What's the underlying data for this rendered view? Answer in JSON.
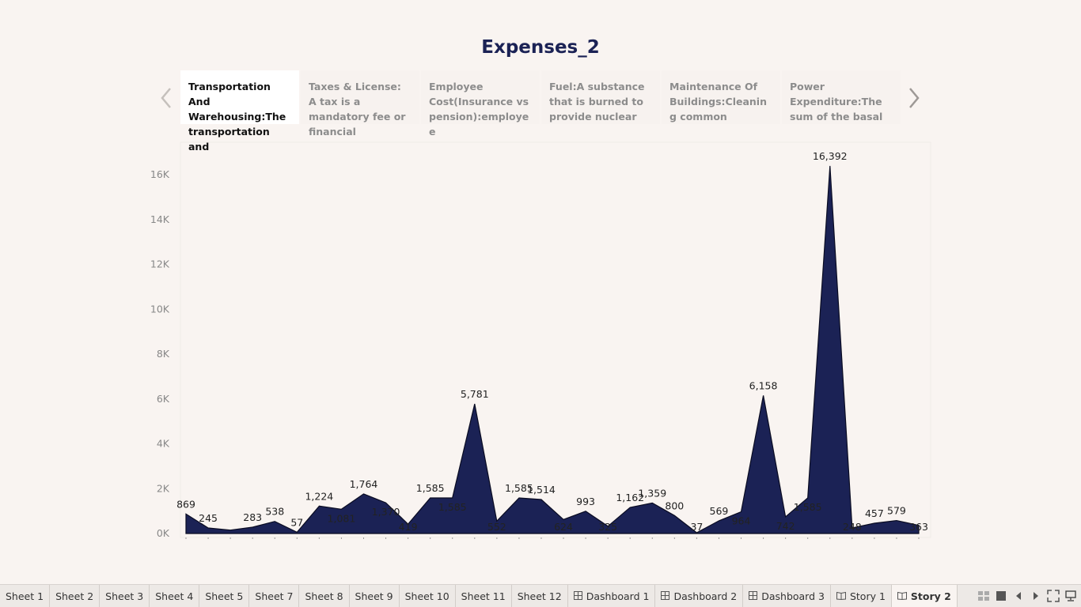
{
  "story": {
    "title": "Expenses_2",
    "captions": [
      {
        "text": "Transportation And Warehousing:The transportation and",
        "active": true
      },
      {
        "text": "Taxes & License: A tax is a mandatory fee or financial",
        "active": false
      },
      {
        "text": "Employee Cost(Insurance vs pension):employee",
        "active": false
      },
      {
        "text": "Fuel:A substance that is burned to provide nuclear",
        "active": false
      },
      {
        "text": "Maintenance Of Buildings:Cleaning common",
        "active": false
      },
      {
        "text": "Power Expenditure:The sum of the basal",
        "active": false
      }
    ]
  },
  "colors": {
    "area_fill": "#1b2255",
    "area_stroke": "#0a0c22",
    "axis_text": "#888888",
    "label_text": "#222222"
  },
  "chart_data": {
    "type": "area",
    "title": "",
    "xlabel": "",
    "ylabel": "",
    "ylim": [
      0,
      17000
    ],
    "y_ticks": [
      0,
      2000,
      4000,
      6000,
      8000,
      10000,
      12000,
      14000,
      16000
    ],
    "y_tick_labels": [
      "0K",
      "2K",
      "4K",
      "6K",
      "8K",
      "10K",
      "12K",
      "14K",
      "16K"
    ],
    "series": [
      {
        "name": "Expenses",
        "values": [
          869,
          245,
          150,
          283,
          538,
          57,
          1224,
          1081,
          1764,
          1370,
          419,
          1585,
          1585,
          5781,
          552,
          1585,
          1514,
          624,
          993,
          325,
          1162,
          1359,
          800,
          37,
          569,
          964,
          6158,
          742,
          1585,
          16392,
          248,
          457,
          579,
          363
        ]
      }
    ],
    "data_labels": [
      {
        "index": 0,
        "text": "869",
        "pos": "above"
      },
      {
        "index": 1,
        "text": "245",
        "pos": "above"
      },
      {
        "index": 3,
        "text": "283",
        "pos": "above"
      },
      {
        "index": 4,
        "text": "538",
        "pos": "above"
      },
      {
        "index": 5,
        "text": "57",
        "pos": "above"
      },
      {
        "index": 6,
        "text": "1,224",
        "pos": "above"
      },
      {
        "index": 7,
        "text": "1,081",
        "pos": "below"
      },
      {
        "index": 8,
        "text": "1,764",
        "pos": "above"
      },
      {
        "index": 9,
        "text": "1,370",
        "pos": "below"
      },
      {
        "index": 10,
        "text": "419",
        "pos": "below"
      },
      {
        "index": 11,
        "text": "1,585",
        "pos": "above"
      },
      {
        "index": 12,
        "text": "1,585",
        "pos": "below"
      },
      {
        "index": 13,
        "text": "5,781",
        "pos": "above"
      },
      {
        "index": 14,
        "text": "552",
        "pos": "below"
      },
      {
        "index": 15,
        "text": "1,585",
        "pos": "above"
      },
      {
        "index": 16,
        "text": "1,514",
        "pos": "above"
      },
      {
        "index": 17,
        "text": "624",
        "pos": "below"
      },
      {
        "index": 18,
        "text": "993",
        "pos": "above"
      },
      {
        "index": 19,
        "text": "325",
        "pos": "below"
      },
      {
        "index": 20,
        "text": "1,162",
        "pos": "above"
      },
      {
        "index": 21,
        "text": "1,359",
        "pos": "above"
      },
      {
        "index": 22,
        "text": "800",
        "pos": "above"
      },
      {
        "index": 23,
        "text": "37",
        "pos": "below"
      },
      {
        "index": 24,
        "text": "569",
        "pos": "above"
      },
      {
        "index": 25,
        "text": "964",
        "pos": "below"
      },
      {
        "index": 26,
        "text": "6,158",
        "pos": "above"
      },
      {
        "index": 27,
        "text": "742",
        "pos": "below"
      },
      {
        "index": 28,
        "text": "1,585",
        "pos": "below"
      },
      {
        "index": 29,
        "text": "16,392",
        "pos": "above"
      },
      {
        "index": 30,
        "text": "248",
        "pos": "below"
      },
      {
        "index": 31,
        "text": "457",
        "pos": "above"
      },
      {
        "index": 32,
        "text": "579",
        "pos": "above"
      },
      {
        "index": 33,
        "text": "363",
        "pos": "below"
      }
    ]
  },
  "tabs": [
    {
      "label": "Sheet 1",
      "icon": "none",
      "active": false
    },
    {
      "label": "Sheet 2",
      "icon": "none",
      "active": false
    },
    {
      "label": "Sheet 3",
      "icon": "none",
      "active": false
    },
    {
      "label": "Sheet 4",
      "icon": "none",
      "active": false
    },
    {
      "label": "Sheet 5",
      "icon": "none",
      "active": false
    },
    {
      "label": "Sheet 7",
      "icon": "none",
      "active": false
    },
    {
      "label": "Sheet 8",
      "icon": "none",
      "active": false
    },
    {
      "label": "Sheet 9",
      "icon": "none",
      "active": false
    },
    {
      "label": "Sheet 10",
      "icon": "none",
      "active": false
    },
    {
      "label": "Sheet 11",
      "icon": "none",
      "active": false
    },
    {
      "label": "Sheet 12",
      "icon": "none",
      "active": false
    },
    {
      "label": "Dashboard 1",
      "icon": "dashboard-icon",
      "active": false
    },
    {
      "label": "Dashboard 2",
      "icon": "dashboard-icon",
      "active": false
    },
    {
      "label": "Dashboard 3",
      "icon": "dashboard-icon",
      "active": false
    },
    {
      "label": "Story 1",
      "icon": "story-icon",
      "active": false
    },
    {
      "label": "Story 2",
      "icon": "story-icon",
      "active": true
    }
  ],
  "controls": [
    "show-sheet-sorter-icon",
    "show-filmstrip-icon",
    "previous-sheet-icon",
    "next-sheet-icon",
    "presentation-mode-icon",
    "present-icon"
  ]
}
